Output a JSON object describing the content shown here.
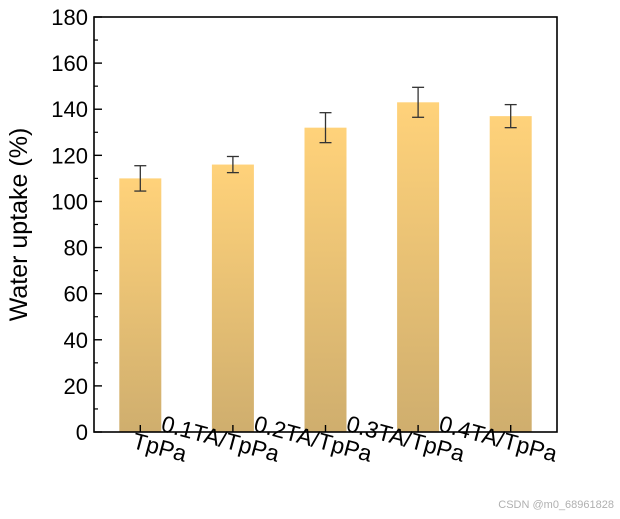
{
  "chart_data": {
    "type": "bar",
    "categories": [
      "TpPa",
      "0.1TA/TpPa",
      "0.2TA/TpPa",
      "0.3TA/TpPa",
      "0.4TA/TpPa"
    ],
    "values": [
      110,
      116,
      132,
      143,
      137
    ],
    "errors": [
      5.5,
      3.5,
      6.5,
      6.5,
      5
    ],
    "ylabel": "Water uptake (%)",
    "xlabel": "",
    "ylim": [
      0,
      180
    ],
    "yticks": [
      0,
      20,
      40,
      60,
      80,
      100,
      120,
      140,
      160,
      180
    ],
    "grid": false,
    "bar_color_top": "#FFD27A",
    "bar_color_bottom": "#CFAE6E"
  },
  "watermark": "CSDN @m0_68961828"
}
